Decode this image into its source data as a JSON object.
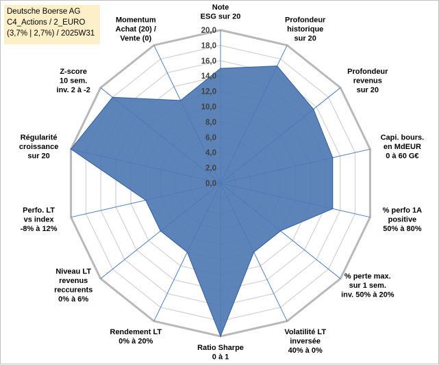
{
  "header": {
    "lines": [
      "Deutsche Boerse AG",
      "C4_Actions / 2_EURO",
      "(3,7% | 2,7%) / 2025W31"
    ]
  },
  "chart_data": {
    "type": "radar",
    "title": "Deutsche Boerse AG",
    "rmax": 20,
    "ticks": [
      "0,0",
      "2,0",
      "4,0",
      "6,0",
      "8,0",
      "10,0",
      "12,0",
      "14,0",
      "16,0",
      "18,0",
      "20,0"
    ],
    "axes": [
      {
        "label": [
          "Note",
          "ESG sur 20"
        ],
        "value": 15
      },
      {
        "label": [
          "Profondeur",
          "historique",
          "sur 20"
        ],
        "value": 17
      },
      {
        "label": [
          "Profondeur",
          "revenus",
          "sur 20"
        ],
        "value": 15.5
      },
      {
        "label": [
          "Capi. bours.",
          "en MdEUR",
          "0 à 60 G€"
        ],
        "value": 15
      },
      {
        "label": [
          "% perfo 1A",
          "positive",
          "50% à 80%"
        ],
        "value": 15
      },
      {
        "label": [
          "% perte max.",
          "sur 1 sem.",
          "inv. 50% à 20%"
        ],
        "value": 10
      },
      {
        "label": [
          "Volatilité LT",
          "inversée",
          "40% à 0%"
        ],
        "value": 10
      },
      {
        "label": [
          "Ratio Sharpe",
          "0 à 1"
        ],
        "value": 20
      },
      {
        "label": [
          "Rendement LT",
          "0% à 20%"
        ],
        "value": 10
      },
      {
        "label": [
          "Niveau LT",
          "revenus",
          "reccurents",
          "0% à 6%"
        ],
        "value": 10
      },
      {
        "label": [
          "Perfo. LT",
          "vs index",
          "-8% à 12%"
        ],
        "value": 10
      },
      {
        "label": [
          "Régularité",
          "croissance",
          "sur 20"
        ],
        "value": 20
      },
      {
        "label": [
          "Z-score",
          "10 sem.",
          "inv. 2 à -2"
        ],
        "value": 18
      },
      {
        "label": [
          "Momentum",
          "Achat (20) /",
          "Vente (0)"
        ],
        "value": 12
      }
    ],
    "colors": {
      "fill": "#4f7ab3",
      "stroke": "#2e5e9e",
      "grid_major": "#b8b8b8",
      "grid_minor": "#d9d9d9",
      "spoke": "#4a7cc4"
    }
  }
}
